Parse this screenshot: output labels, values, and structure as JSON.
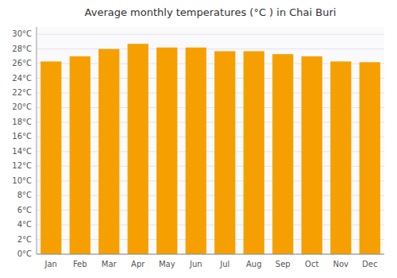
{
  "chart_data": {
    "type": "bar",
    "title": "Average monthly temperatures (°C ) in Chai Buri",
    "categories": [
      "Jan",
      "Feb",
      "Mar",
      "Apr",
      "May",
      "Jun",
      "Jul",
      "Aug",
      "Sep",
      "Oct",
      "Nov",
      "Dec"
    ],
    "values": [
      26.3,
      27.0,
      28.0,
      28.7,
      28.2,
      28.2,
      27.7,
      27.7,
      27.3,
      27.0,
      26.3,
      26.2
    ],
    "color": "#F5A000",
    "ylim": [
      0,
      31
    ],
    "yticks": [
      {
        "value": 0,
        "label": "0°C"
      },
      {
        "value": 2,
        "label": "2°C"
      },
      {
        "value": 4,
        "label": "4°C"
      },
      {
        "value": 6,
        "label": "6°C"
      },
      {
        "value": 8,
        "label": "8°C"
      },
      {
        "value": 10,
        "label": "10°C"
      },
      {
        "value": 12,
        "label": "12°C"
      },
      {
        "value": 14,
        "label": "14°C"
      },
      {
        "value": 16,
        "label": "16°C"
      },
      {
        "value": 18,
        "label": "18°C"
      },
      {
        "value": 20,
        "label": "20°C"
      },
      {
        "value": 22,
        "label": "22°C"
      },
      {
        "value": 24,
        "label": "24°C"
      },
      {
        "value": 26,
        "label": "26°C"
      },
      {
        "value": 28,
        "label": "28°C"
      },
      {
        "value": 30,
        "label": "30°C"
      }
    ],
    "grid": true
  }
}
